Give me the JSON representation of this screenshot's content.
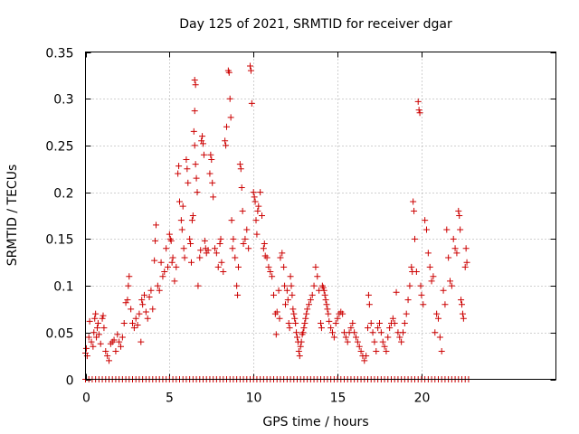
{
  "chart_data": {
    "type": "scatter",
    "title": "Day 125 of 2021, SRMTID for receiver dgar",
    "xlabel": "GPS time / hours",
    "ylabel": "SRMTID / TECUs",
    "xlim": [
      0,
      28
    ],
    "ylim": [
      0,
      0.35
    ],
    "xticks": [
      0,
      5,
      10,
      15,
      20
    ],
    "xtick_labels": [
      "0",
      "5",
      "10",
      "15",
      "20"
    ],
    "yticks": [
      0,
      0.05,
      0.1,
      0.15,
      0.2,
      0.25,
      0.3,
      0.35
    ],
    "ytick_labels": [
      "0",
      "0.05",
      "0.1",
      "0.15",
      "0.2",
      "0.25",
      "0.3",
      "0.35"
    ],
    "grid": true,
    "marker": "plus",
    "color": "#cc0000",
    "zero_baseline": {
      "x_start": 0.0,
      "x_end": 22.8,
      "step": 0.2,
      "y": 0
    },
    "series": [
      {
        "name": "SRMTID",
        "points": [
          [
            0.0,
            0.028
          ],
          [
            0.05,
            0.033
          ],
          [
            0.1,
            0.025
          ],
          [
            0.2,
            0.045
          ],
          [
            0.25,
            0.062
          ],
          [
            0.35,
            0.04
          ],
          [
            0.45,
            0.035
          ],
          [
            0.5,
            0.05
          ],
          [
            0.55,
            0.065
          ],
          [
            0.6,
            0.07
          ],
          [
            0.65,
            0.045
          ],
          [
            0.7,
            0.055
          ],
          [
            0.75,
            0.06
          ],
          [
            0.8,
            0.048
          ],
          [
            0.9,
            0.038
          ],
          [
            1.0,
            0.065
          ],
          [
            1.05,
            0.068
          ],
          [
            1.1,
            0.055
          ],
          [
            1.2,
            0.03
          ],
          [
            1.3,
            0.025
          ],
          [
            1.4,
            0.02
          ],
          [
            1.5,
            0.038
          ],
          [
            1.6,
            0.04
          ],
          [
            1.7,
            0.042
          ],
          [
            1.8,
            0.03
          ],
          [
            1.9,
            0.048
          ],
          [
            2.0,
            0.04
          ],
          [
            2.1,
            0.035
          ],
          [
            2.2,
            0.045
          ],
          [
            2.3,
            0.06
          ],
          [
            2.4,
            0.082
          ],
          [
            2.5,
            0.085
          ],
          [
            2.55,
            0.1
          ],
          [
            2.6,
            0.11
          ],
          [
            2.7,
            0.075
          ],
          [
            2.8,
            0.06
          ],
          [
            2.9,
            0.055
          ],
          [
            3.0,
            0.065
          ],
          [
            3.1,
            0.058
          ],
          [
            3.2,
            0.07
          ],
          [
            3.3,
            0.04
          ],
          [
            3.35,
            0.085
          ],
          [
            3.4,
            0.08
          ],
          [
            3.5,
            0.09
          ],
          [
            3.6,
            0.072
          ],
          [
            3.7,
            0.065
          ],
          [
            3.8,
            0.088
          ],
          [
            3.9,
            0.095
          ],
          [
            4.0,
            0.075
          ],
          [
            4.1,
            0.127
          ],
          [
            4.15,
            0.148
          ],
          [
            4.2,
            0.165
          ],
          [
            4.3,
            0.1
          ],
          [
            4.4,
            0.095
          ],
          [
            4.5,
            0.125
          ],
          [
            4.6,
            0.11
          ],
          [
            4.7,
            0.115
          ],
          [
            4.8,
            0.14
          ],
          [
            4.9,
            0.12
          ],
          [
            5.0,
            0.155
          ],
          [
            5.05,
            0.15
          ],
          [
            5.1,
            0.148
          ],
          [
            5.15,
            0.125
          ],
          [
            5.2,
            0.13
          ],
          [
            5.3,
            0.105
          ],
          [
            5.4,
            0.12
          ],
          [
            5.5,
            0.22
          ],
          [
            5.55,
            0.228
          ],
          [
            5.6,
            0.19
          ],
          [
            5.7,
            0.17
          ],
          [
            5.75,
            0.16
          ],
          [
            5.8,
            0.185
          ],
          [
            5.85,
            0.14
          ],
          [
            5.9,
            0.13
          ],
          [
            6.0,
            0.235
          ],
          [
            6.05,
            0.225
          ],
          [
            6.1,
            0.21
          ],
          [
            6.2,
            0.15
          ],
          [
            6.25,
            0.145
          ],
          [
            6.3,
            0.125
          ],
          [
            6.35,
            0.17
          ],
          [
            6.4,
            0.175
          ],
          [
            6.5,
            0.32
          ],
          [
            6.55,
            0.315
          ],
          [
            6.5,
            0.287
          ],
          [
            6.45,
            0.265
          ],
          [
            6.5,
            0.25
          ],
          [
            6.55,
            0.23
          ],
          [
            6.6,
            0.215
          ],
          [
            6.65,
            0.2
          ],
          [
            6.7,
            0.1
          ],
          [
            6.8,
            0.13
          ],
          [
            6.85,
            0.138
          ],
          [
            6.9,
            0.255
          ],
          [
            6.95,
            0.26
          ],
          [
            7.0,
            0.252
          ],
          [
            7.05,
            0.24
          ],
          [
            7.1,
            0.148
          ],
          [
            7.15,
            0.14
          ],
          [
            7.2,
            0.135
          ],
          [
            7.3,
            0.138
          ],
          [
            7.4,
            0.22
          ],
          [
            7.45,
            0.24
          ],
          [
            7.5,
            0.235
          ],
          [
            7.55,
            0.21
          ],
          [
            7.6,
            0.195
          ],
          [
            7.7,
            0.14
          ],
          [
            7.8,
            0.135
          ],
          [
            7.9,
            0.12
          ],
          [
            8.0,
            0.145
          ],
          [
            8.05,
            0.15
          ],
          [
            8.1,
            0.125
          ],
          [
            8.2,
            0.115
          ],
          [
            8.3,
            0.255
          ],
          [
            8.35,
            0.25
          ],
          [
            8.4,
            0.27
          ],
          [
            8.5,
            0.33
          ],
          [
            8.55,
            0.328
          ],
          [
            8.6,
            0.3
          ],
          [
            8.65,
            0.28
          ],
          [
            8.7,
            0.17
          ],
          [
            8.75,
            0.14
          ],
          [
            8.8,
            0.15
          ],
          [
            8.9,
            0.13
          ],
          [
            9.0,
            0.1
          ],
          [
            9.05,
            0.09
          ],
          [
            9.1,
            0.12
          ],
          [
            9.2,
            0.23
          ],
          [
            9.25,
            0.225
          ],
          [
            9.3,
            0.205
          ],
          [
            9.35,
            0.18
          ],
          [
            9.4,
            0.145
          ],
          [
            9.5,
            0.15
          ],
          [
            9.6,
            0.16
          ],
          [
            9.7,
            0.14
          ],
          [
            9.8,
            0.335
          ],
          [
            9.85,
            0.33
          ],
          [
            9.9,
            0.295
          ],
          [
            10.0,
            0.2
          ],
          [
            10.05,
            0.195
          ],
          [
            10.1,
            0.19
          ],
          [
            10.15,
            0.17
          ],
          [
            10.2,
            0.155
          ],
          [
            10.25,
            0.18
          ],
          [
            10.3,
            0.185
          ],
          [
            10.4,
            0.2
          ],
          [
            10.5,
            0.175
          ],
          [
            10.6,
            0.14
          ],
          [
            10.65,
            0.145
          ],
          [
            10.7,
            0.132
          ],
          [
            10.8,
            0.13
          ],
          [
            10.9,
            0.12
          ],
          [
            11.0,
            0.115
          ],
          [
            11.1,
            0.11
          ],
          [
            11.2,
            0.09
          ],
          [
            11.3,
            0.07
          ],
          [
            11.35,
            0.048
          ],
          [
            11.4,
            0.072
          ],
          [
            11.5,
            0.095
          ],
          [
            11.55,
            0.065
          ],
          [
            11.6,
            0.13
          ],
          [
            11.7,
            0.135
          ],
          [
            11.8,
            0.12
          ],
          [
            11.85,
            0.1
          ],
          [
            11.9,
            0.08
          ],
          [
            12.0,
            0.095
          ],
          [
            12.05,
            0.085
          ],
          [
            12.1,
            0.06
          ],
          [
            12.15,
            0.055
          ],
          [
            12.2,
            0.11
          ],
          [
            12.25,
            0.1
          ],
          [
            12.3,
            0.09
          ],
          [
            12.35,
            0.075
          ],
          [
            12.4,
            0.07
          ],
          [
            12.45,
            0.065
          ],
          [
            12.5,
            0.06
          ],
          [
            12.55,
            0.05
          ],
          [
            12.6,
            0.045
          ],
          [
            12.65,
            0.04
          ],
          [
            12.7,
            0.03
          ],
          [
            12.75,
            0.025
          ],
          [
            12.8,
            0.035
          ],
          [
            12.85,
            0.04
          ],
          [
            12.9,
            0.048
          ],
          [
            12.95,
            0.05
          ],
          [
            13.0,
            0.055
          ],
          [
            13.05,
            0.06
          ],
          [
            13.1,
            0.065
          ],
          [
            13.15,
            0.07
          ],
          [
            13.2,
            0.075
          ],
          [
            13.3,
            0.08
          ],
          [
            13.4,
            0.085
          ],
          [
            13.5,
            0.09
          ],
          [
            13.6,
            0.1
          ],
          [
            13.7,
            0.12
          ],
          [
            13.8,
            0.11
          ],
          [
            13.9,
            0.095
          ],
          [
            14.0,
            0.06
          ],
          [
            14.05,
            0.055
          ],
          [
            14.1,
            0.1
          ],
          [
            14.15,
            0.098
          ],
          [
            14.2,
            0.095
          ],
          [
            14.25,
            0.09
          ],
          [
            14.3,
            0.085
          ],
          [
            14.35,
            0.08
          ],
          [
            14.4,
            0.075
          ],
          [
            14.45,
            0.07
          ],
          [
            14.5,
            0.062
          ],
          [
            14.6,
            0.055
          ],
          [
            14.7,
            0.05
          ],
          [
            14.8,
            0.045
          ],
          [
            14.9,
            0.06
          ],
          [
            15.0,
            0.065
          ],
          [
            15.1,
            0.07
          ],
          [
            15.2,
            0.072
          ],
          [
            15.3,
            0.07
          ],
          [
            15.4,
            0.05
          ],
          [
            15.5,
            0.045
          ],
          [
            15.6,
            0.04
          ],
          [
            15.7,
            0.05
          ],
          [
            15.8,
            0.055
          ],
          [
            15.9,
            0.06
          ],
          [
            16.0,
            0.05
          ],
          [
            16.1,
            0.045
          ],
          [
            16.2,
            0.04
          ],
          [
            16.3,
            0.035
          ],
          [
            16.4,
            0.03
          ],
          [
            16.5,
            0.025
          ],
          [
            16.6,
            0.02
          ],
          [
            16.7,
            0.025
          ],
          [
            16.8,
            0.055
          ],
          [
            16.85,
            0.09
          ],
          [
            16.9,
            0.08
          ],
          [
            17.0,
            0.06
          ],
          [
            17.1,
            0.05
          ],
          [
            17.2,
            0.04
          ],
          [
            17.3,
            0.03
          ],
          [
            17.4,
            0.055
          ],
          [
            17.5,
            0.06
          ],
          [
            17.6,
            0.05
          ],
          [
            17.7,
            0.04
          ],
          [
            17.8,
            0.035
          ],
          [
            17.9,
            0.03
          ],
          [
            18.0,
            0.045
          ],
          [
            18.1,
            0.055
          ],
          [
            18.2,
            0.06
          ],
          [
            18.3,
            0.065
          ],
          [
            18.4,
            0.06
          ],
          [
            18.5,
            0.093
          ],
          [
            18.6,
            0.05
          ],
          [
            18.7,
            0.045
          ],
          [
            18.8,
            0.04
          ],
          [
            18.9,
            0.05
          ],
          [
            19.0,
            0.06
          ],
          [
            19.1,
            0.07
          ],
          [
            19.2,
            0.085
          ],
          [
            19.3,
            0.1
          ],
          [
            19.4,
            0.12
          ],
          [
            19.45,
            0.115
          ],
          [
            19.5,
            0.19
          ],
          [
            19.55,
            0.18
          ],
          [
            19.6,
            0.15
          ],
          [
            19.7,
            0.115
          ],
          [
            19.8,
            0.297
          ],
          [
            19.85,
            0.288
          ],
          [
            19.9,
            0.285
          ],
          [
            19.95,
            0.1
          ],
          [
            20.0,
            0.09
          ],
          [
            20.1,
            0.08
          ],
          [
            20.2,
            0.17
          ],
          [
            20.3,
            0.16
          ],
          [
            20.4,
            0.135
          ],
          [
            20.5,
            0.12
          ],
          [
            20.6,
            0.105
          ],
          [
            20.7,
            0.11
          ],
          [
            20.8,
            0.05
          ],
          [
            20.9,
            0.07
          ],
          [
            21.0,
            0.065
          ],
          [
            21.1,
            0.045
          ],
          [
            21.2,
            0.03
          ],
          [
            21.3,
            0.095
          ],
          [
            21.4,
            0.08
          ],
          [
            21.5,
            0.16
          ],
          [
            21.6,
            0.13
          ],
          [
            21.7,
            0.105
          ],
          [
            21.8,
            0.1
          ],
          [
            21.9,
            0.15
          ],
          [
            22.0,
            0.14
          ],
          [
            22.1,
            0.135
          ],
          [
            22.2,
            0.18
          ],
          [
            22.25,
            0.175
          ],
          [
            22.3,
            0.16
          ],
          [
            22.35,
            0.085
          ],
          [
            22.4,
            0.08
          ],
          [
            22.45,
            0.07
          ],
          [
            22.5,
            0.065
          ],
          [
            22.6,
            0.12
          ],
          [
            22.65,
            0.14
          ],
          [
            22.7,
            0.125
          ]
        ]
      }
    ]
  }
}
